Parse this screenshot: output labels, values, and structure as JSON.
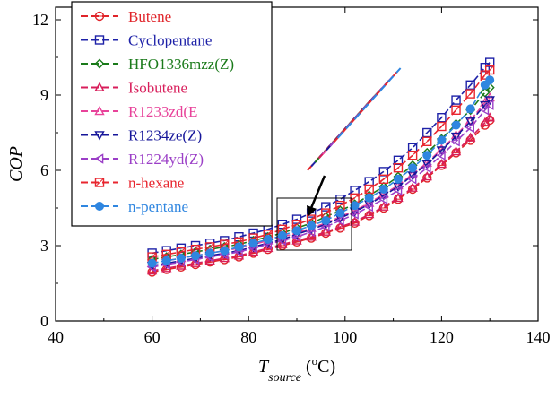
{
  "chart_data": {
    "type": "scatter",
    "title": "",
    "ylabel": "COP",
    "xlabel": {
      "main": "T",
      "subscript": "source",
      "unit_open": " (",
      "unit_degree": "o",
      "unit_rest": "C)"
    },
    "xlim": [
      40,
      140
    ],
    "ylim": [
      0,
      12.5
    ],
    "xticks": [
      40,
      60,
      80,
      100,
      120,
      140
    ],
    "yticks": [
      0,
      3,
      6,
      9,
      12
    ],
    "grid": false,
    "legend_position": "top-left",
    "x": [
      60,
      63,
      66,
      69,
      72,
      75,
      78,
      81,
      84,
      87,
      90,
      93,
      96,
      99,
      102,
      105,
      108,
      111,
      114,
      117,
      120,
      123,
      126,
      129,
      130
    ],
    "series": [
      {
        "name": "Butene",
        "color": "#e0242a",
        "marker": "circle-line",
        "values": [
          1.95,
          2.05,
          2.15,
          2.25,
          2.35,
          2.45,
          2.55,
          2.7,
          2.85,
          3.0,
          3.15,
          3.3,
          3.5,
          3.7,
          3.9,
          4.2,
          4.5,
          4.85,
          5.25,
          5.7,
          6.2,
          6.7,
          7.2,
          7.8,
          8.0
        ]
      },
      {
        "name": "Cyclopentane",
        "color": "#1e22a8",
        "marker": "square",
        "values": [
          2.7,
          2.8,
          2.9,
          3.0,
          3.1,
          3.2,
          3.35,
          3.5,
          3.65,
          3.85,
          4.05,
          4.3,
          4.55,
          4.85,
          5.2,
          5.55,
          5.95,
          6.4,
          6.9,
          7.5,
          8.1,
          8.8,
          9.4,
          10.1,
          10.3
        ]
      },
      {
        "name": "HFO1336mzz(Z)",
        "color": "#1a7a1a",
        "marker": "diamond",
        "values": [
          2.45,
          2.55,
          2.65,
          2.75,
          2.85,
          2.95,
          3.05,
          3.2,
          3.35,
          3.5,
          3.7,
          3.9,
          4.15,
          4.4,
          4.65,
          5.0,
          5.35,
          5.75,
          6.2,
          6.7,
          7.25,
          7.85,
          8.4,
          9.1,
          9.3
        ]
      },
      {
        "name": "Isobutene",
        "color": "#d81e5b",
        "marker": "triangle-up",
        "values": [
          2.0,
          2.1,
          2.2,
          2.3,
          2.4,
          2.5,
          2.6,
          2.75,
          2.9,
          3.05,
          3.2,
          3.35,
          3.55,
          3.75,
          3.95,
          4.25,
          4.55,
          4.9,
          5.3,
          5.75,
          6.25,
          6.75,
          7.3,
          7.9,
          8.1
        ]
      },
      {
        "name": "R1233zd(E",
        "color": "#e8439a",
        "marker": "triangle-up",
        "values": [
          2.3,
          2.4,
          2.5,
          2.6,
          2.7,
          2.8,
          2.9,
          3.05,
          3.2,
          3.35,
          3.5,
          3.7,
          3.9,
          4.15,
          4.4,
          4.7,
          5.05,
          5.4,
          5.85,
          6.3,
          6.85,
          7.4,
          8.0,
          8.7,
          8.9
        ]
      },
      {
        "name": "R1234ze(Z)",
        "color": "#16169a",
        "marker": "triangle-down",
        "values": [
          2.2,
          2.3,
          2.4,
          2.5,
          2.6,
          2.7,
          2.8,
          2.95,
          3.1,
          3.25,
          3.45,
          3.65,
          3.85,
          4.1,
          4.35,
          4.65,
          5.0,
          5.35,
          5.8,
          6.25,
          6.8,
          7.35,
          7.95,
          8.6,
          8.8
        ]
      },
      {
        "name": "R1224yd(Z)",
        "color": "#9b3fc7",
        "marker": "triangle-left",
        "values": [
          2.15,
          2.25,
          2.35,
          2.45,
          2.55,
          2.65,
          2.75,
          2.9,
          3.05,
          3.2,
          3.35,
          3.55,
          3.75,
          4.0,
          4.25,
          4.55,
          4.85,
          5.2,
          5.65,
          6.1,
          6.6,
          7.15,
          7.7,
          8.4,
          8.6
        ]
      },
      {
        "name": "n-hexane",
        "color": "#e8262f",
        "marker": "square-x",
        "values": [
          2.55,
          2.65,
          2.75,
          2.85,
          2.95,
          3.05,
          3.15,
          3.3,
          3.45,
          3.65,
          3.85,
          4.05,
          4.3,
          4.6,
          4.9,
          5.25,
          5.65,
          6.1,
          6.6,
          7.15,
          7.75,
          8.4,
          9.05,
          9.8,
          10.0
        ]
      },
      {
        "name": "n-pentane",
        "color": "#2f86e0",
        "marker": "filled-circle",
        "values": [
          2.3,
          2.4,
          2.5,
          2.6,
          2.7,
          2.8,
          2.95,
          3.1,
          3.25,
          3.4,
          3.6,
          3.8,
          4.0,
          4.3,
          4.6,
          4.9,
          5.25,
          5.65,
          6.1,
          6.6,
          7.2,
          7.8,
          8.45,
          9.4,
          9.6
        ]
      }
    ]
  }
}
